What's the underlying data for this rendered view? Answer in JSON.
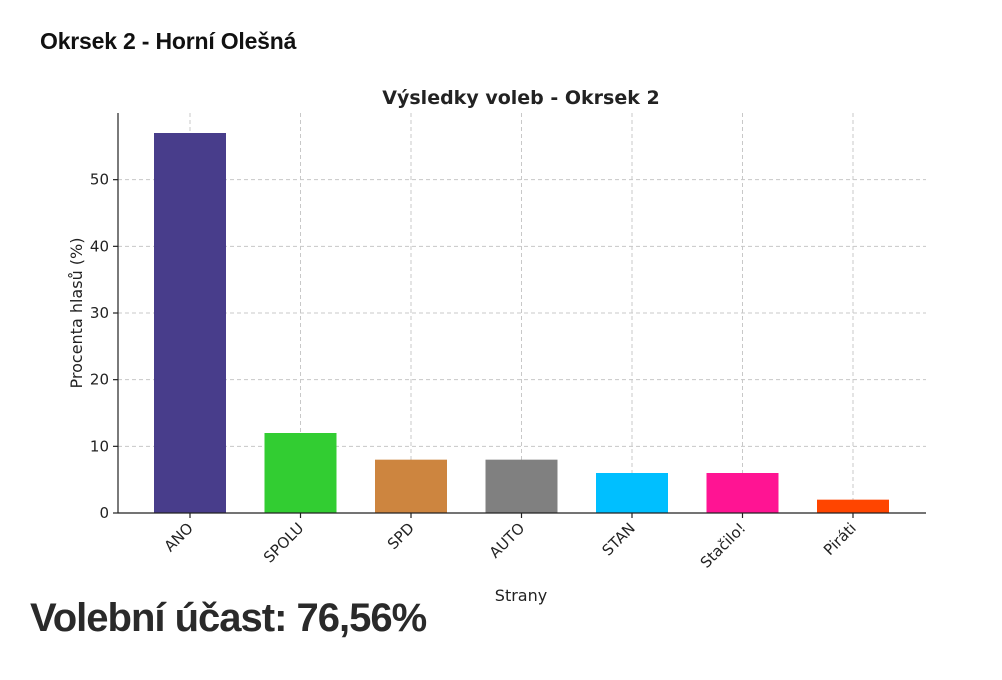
{
  "header": {
    "title_prefix": "Okrsek 2",
    "separator": "-",
    "district": "Horní Olešná"
  },
  "footer": {
    "turnout": "Volební účast: 76,56%"
  },
  "chart_data": {
    "type": "bar",
    "title": "Výsledky voleb - Okrsek 2",
    "xlabel": "Strany",
    "ylabel": "Procenta hlasů (%)",
    "categories": [
      "ANO",
      "SPOLU",
      "SPD",
      "AUTO",
      "STAN",
      "Stačilo!",
      "Piráti"
    ],
    "values": [
      57,
      12,
      8,
      8,
      6,
      6,
      2
    ],
    "colors": [
      "#483d8b",
      "#32cd32",
      "#cd853f",
      "#808080",
      "#00bfff",
      "#ff1493",
      "#ff4500"
    ],
    "ylim": [
      0,
      60
    ],
    "yticks": [
      0,
      10,
      20,
      30,
      40,
      50
    ],
    "grid": true
  }
}
